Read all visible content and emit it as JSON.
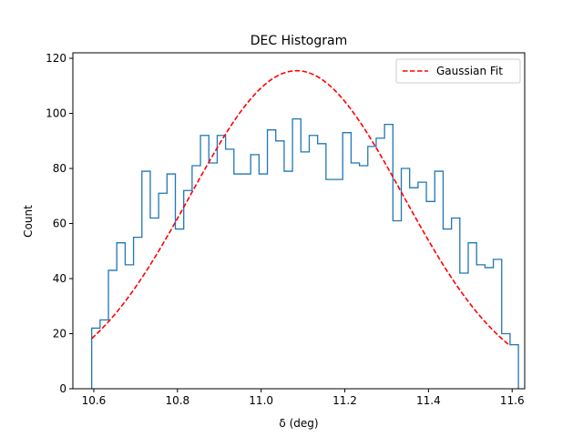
{
  "chart_data": {
    "type": "histogram",
    "title": "DEC Histogram",
    "xlabel": "δ (deg)",
    "ylabel": "Count",
    "xlim": [
      10.55,
      11.63
    ],
    "ylim": [
      0,
      122
    ],
    "x_ticks": [
      10.6,
      10.8,
      11.0,
      11.2,
      11.4,
      11.6
    ],
    "x_tick_labels": [
      "10.6",
      "10.8",
      "11.0",
      "11.2",
      "11.4",
      "11.6"
    ],
    "y_ticks": [
      0,
      20,
      40,
      60,
      80,
      100,
      120
    ],
    "y_tick_labels": [
      "0",
      "20",
      "40",
      "60",
      "80",
      "100",
      "120"
    ],
    "legend_position": "top-right",
    "histogram": {
      "color": "#1f77b4",
      "bin_start": 10.595,
      "bin_width": 0.02,
      "counts": [
        22,
        25,
        43,
        53,
        45,
        55,
        79,
        62,
        71,
        78,
        58,
        72,
        81,
        92,
        82,
        92,
        87,
        78,
        78,
        85,
        78,
        94,
        90,
        79,
        98,
        86,
        92,
        89,
        76,
        76,
        93,
        82,
        81,
        88,
        91,
        96,
        61,
        80,
        73,
        75,
        68,
        79,
        58,
        62,
        42,
        53,
        45,
        44,
        47,
        20,
        16
      ]
    },
    "series": [
      {
        "name": "Gaussian Fit",
        "style": "dashed",
        "color": "#ff0000",
        "amplitude": 115.5,
        "mean": 11.085,
        "sigma": 0.255,
        "x_range": [
          10.595,
          11.595
        ]
      }
    ]
  }
}
